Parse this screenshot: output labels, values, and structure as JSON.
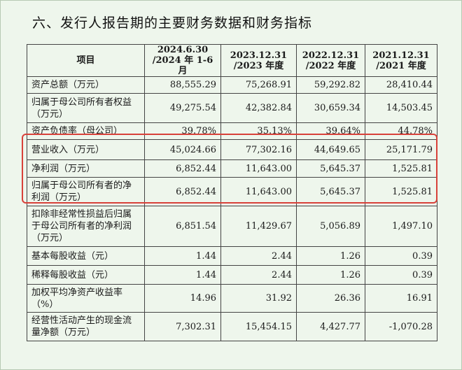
{
  "heading": "六、发行人报告期的主要财务数据和财务指标",
  "table": {
    "header": {
      "item": "项目",
      "cols": [
        [
          "2024.6.30",
          "/2024 年 1-6 月"
        ],
        [
          "2023.12.31",
          "/2023 年度"
        ],
        [
          "2022.12.31",
          "/2022 年度"
        ],
        [
          "2021.12.31",
          "/2021 年度"
        ]
      ]
    },
    "rows": [
      {
        "label": "资产总额（万元）",
        "values": [
          "88,555.29",
          "75,268.91",
          "59,292.82",
          "28,410.44"
        ]
      },
      {
        "label": "归属于母公司所有者权益（万元）",
        "values": [
          "49,275.54",
          "42,382.84",
          "30,659.34",
          "14,503.45"
        ]
      },
      {
        "label": "资产负债率（母公司）",
        "values": [
          "39.78%",
          "35.13%",
          "39.64%",
          "44.78%"
        ]
      },
      {
        "label": "营业收入（万元）",
        "values": [
          "45,024.66",
          "77,302.16",
          "44,649.65",
          "25,171.79"
        ]
      },
      {
        "label": "净利润（万元）",
        "values": [
          "6,852.44",
          "11,643.00",
          "5,645.37",
          "1,525.81"
        ]
      },
      {
        "label": "归属于母公司所有者的净利润（万元）",
        "values": [
          "6,852.44",
          "11,643.00",
          "5,645.37",
          "1,525.81"
        ]
      },
      {
        "label": "扣除非经常性损益后归属于母公司所有者的净利润（万元）",
        "values": [
          "6,851.54",
          "11,429.67",
          "5,056.89",
          "1,497.10"
        ]
      },
      {
        "label": "基本每股收益（元）",
        "values": [
          "1.44",
          "2.44",
          "1.26",
          "0.39"
        ]
      },
      {
        "label": "稀释每股收益（元）",
        "values": [
          "1.44",
          "2.44",
          "1.26",
          "0.39"
        ]
      },
      {
        "label": "加权平均净资产收益率（%）",
        "values": [
          "14.96",
          "31.92",
          "26.36",
          "16.91"
        ]
      },
      {
        "label": "经营性活动产生的现金流量净额（万元）",
        "values": [
          "7,302.31",
          "15,454.15",
          "4,427.77",
          "-1,070.28"
        ]
      }
    ]
  },
  "colors": {
    "background": "#eef6ec",
    "highlight_border": "#d8413a"
  }
}
